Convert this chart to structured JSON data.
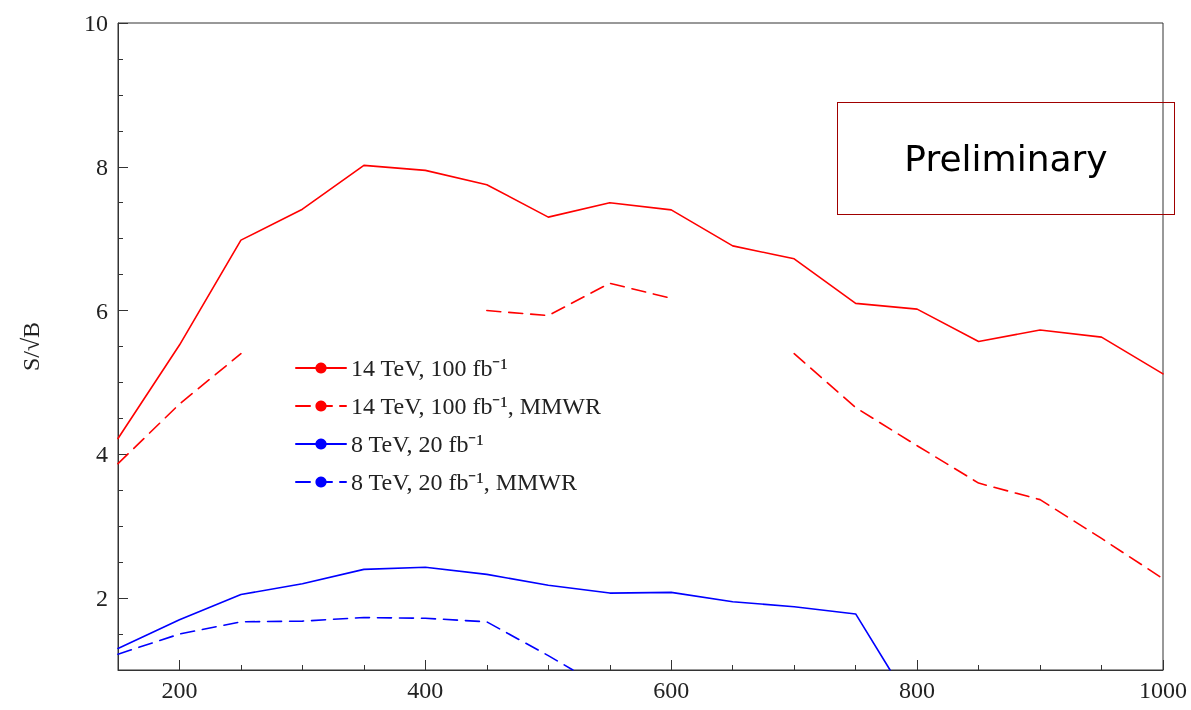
{
  "chart_data": {
    "type": "line",
    "ylabel": "S/√B",
    "xlim": [
      150,
      1000
    ],
    "xticks": [
      200,
      400,
      600,
      800,
      1000
    ],
    "ylim": [
      1,
      10
    ],
    "yticks": [
      2,
      4,
      6,
      8,
      10
    ],
    "grid": false,
    "legend": "left",
    "marker": "none",
    "annotations": [
      "Preliminary"
    ],
    "series": [
      {
        "name": "14 TeV, 100 fb⁻¹",
        "color": "#ff0000",
        "line_style": "solid",
        "x": [
          150,
          200,
          250,
          300,
          350,
          400,
          450,
          500,
          550,
          600,
          650,
          700,
          750,
          800,
          850,
          900,
          950,
          1000
        ],
        "values": [
          4.22,
          5.52,
          6.98,
          7.41,
          8.02,
          7.95,
          7.75,
          7.3,
          7.5,
          7.4,
          6.9,
          6.72,
          6.1,
          6.02,
          5.57,
          5.73,
          5.63,
          5.12
        ]
      },
      {
        "name": "14 TeV, 100 fb⁻¹, MMWR",
        "color": "#ff0000",
        "line_style": "dashed",
        "x": [
          150,
          200,
          250,
          300,
          350,
          400,
          450,
          500,
          550,
          600,
          650,
          700,
          750,
          800,
          850,
          900,
          950,
          1000
        ],
        "values": [
          3.87,
          4.7,
          5.4,
          null,
          null,
          null,
          6.0,
          5.93,
          6.38,
          6.17,
          null,
          5.4,
          4.65,
          4.12,
          3.6,
          3.37,
          2.83,
          2.27
        ]
      },
      {
        "name": "8 TeV, 20 fb⁻¹",
        "color": "#0000ff",
        "line_style": "solid",
        "x": [
          150,
          200,
          250,
          300,
          350,
          400,
          450,
          500,
          550,
          600,
          650,
          700,
          750,
          778
        ],
        "values": [
          1.3,
          1.7,
          2.05,
          2.2,
          2.4,
          2.43,
          2.33,
          2.18,
          2.07,
          2.08,
          1.95,
          1.88,
          1.78,
          1.0
        ]
      },
      {
        "name": "8 TeV, 20 fb⁻¹, MMWR",
        "color": "#0000ff",
        "line_style": "dashed",
        "x": [
          150,
          200,
          250,
          300,
          350,
          400,
          450,
          500,
          520
        ],
        "values": [
          1.22,
          1.5,
          1.67,
          1.68,
          1.73,
          1.72,
          1.67,
          1.2,
          1.0
        ]
      }
    ]
  }
}
